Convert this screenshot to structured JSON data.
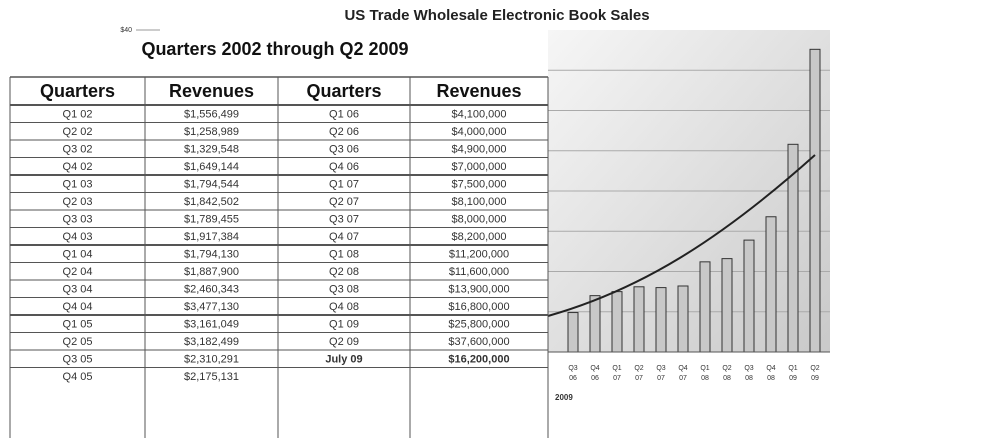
{
  "title": "US Trade Wholesale Electronic Book Sales",
  "chart_data": {
    "type": "bar",
    "categories": [
      [
        "Q3",
        "06"
      ],
      [
        "Q4",
        "06"
      ],
      [
        "Q1",
        "07"
      ],
      [
        "Q2",
        "07"
      ],
      [
        "Q3",
        "07"
      ],
      [
        "Q4",
        "07"
      ],
      [
        "Q1",
        "08"
      ],
      [
        "Q2",
        "08"
      ],
      [
        "Q3",
        "08"
      ],
      [
        "Q4",
        "08"
      ],
      [
        "Q1",
        "09"
      ],
      [
        "Q2",
        "09"
      ]
    ],
    "values": [
      4.9,
      7.0,
      7.5,
      8.1,
      8.0,
      8.2,
      11.2,
      11.6,
      13.9,
      16.8,
      25.8,
      37.6
    ],
    "color": "#c8c8c8",
    "ylim": [
      0,
      40
    ],
    "yticks": [
      {
        "value": 40,
        "label": "$40"
      }
    ],
    "grid_step": 5,
    "grid": true,
    "note": "2009"
  },
  "table": {
    "title": "Quarters 2002 through Q2 2009",
    "header": [
      "Quarters",
      "Revenues",
      "Quarters",
      "Revenues"
    ],
    "rows": [
      [
        "Q1 02",
        "$1,556,499",
        "Q1 06",
        "$4,100,000"
      ],
      [
        "Q2 02",
        "$1,258,989",
        "Q2 06",
        "$4,000,000"
      ],
      [
        "Q3 02",
        "$1,329,548",
        "Q3 06",
        "$4,900,000"
      ],
      [
        "Q4 02",
        "$1,649,144",
        "Q4 06",
        "$7,000,000"
      ],
      [
        "Q1 03",
        "$1,794,544",
        "Q1 07",
        "$7,500,000"
      ],
      [
        "Q2 03",
        "$1,842,502",
        "Q2 07",
        "$8,100,000"
      ],
      [
        "Q3 03",
        "$1,789,455",
        "Q3 07",
        "$8,000,000"
      ],
      [
        "Q4 03",
        "$1,917,384",
        "Q4 07",
        "$8,200,000"
      ],
      [
        "Q1 04",
        "$1,794,130",
        "Q1 08",
        "$11,200,000"
      ],
      [
        "Q2 04",
        "$1,887,900",
        "Q2 08",
        "$11,600,000"
      ],
      [
        "Q3 04",
        "$2,460,343",
        "Q3 08",
        "$13,900,000"
      ],
      [
        "Q4 04",
        "$3,477,130",
        "Q4 08",
        "$16,800,000"
      ],
      [
        "Q1 05",
        "$3,161,049",
        "Q1 09",
        "$25,800,000"
      ],
      [
        "Q2 05",
        "$3,182,499",
        "Q2 09",
        "$37,600,000"
      ],
      [
        "Q3 05",
        "$2,310,291",
        "July 09",
        "$16,200,000"
      ],
      [
        "Q4 05",
        "$2,175,131"
      ]
    ]
  }
}
